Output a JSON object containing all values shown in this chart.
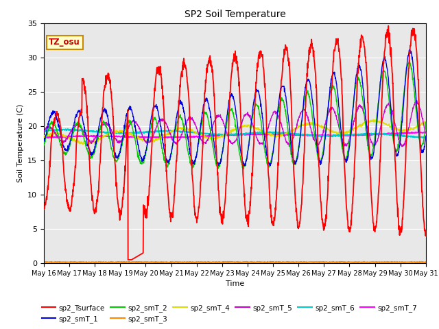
{
  "title": "SP2 Soil Temperature",
  "ylabel": "Soil Temperature (C)",
  "xlabel": "Time",
  "ylim": [
    0,
    35
  ],
  "annotation": "TZ_osu",
  "annotation_color": "#cc0000",
  "annotation_bg": "#ffffcc",
  "annotation_border": "#cc8800",
  "plot_bg": "#e8e8e8",
  "fig_bg": "#ffffff",
  "series_colors": {
    "sp2_Tsurface": "#ff0000",
    "sp2_smT_1": "#0000dd",
    "sp2_smT_2": "#00cc00",
    "sp2_smT_3": "#ff8800",
    "sp2_smT_4": "#dddd00",
    "sp2_smT_5": "#cc00cc",
    "sp2_smT_6": "#00cccc",
    "sp2_smT_7": "#ff00ff"
  },
  "tick_labels": [
    "May 16",
    "May 17",
    "May 18",
    "May 19",
    "May 20",
    "May 21",
    "May 22",
    "May 23",
    "May 24",
    "May 25",
    "May 26",
    "May 27",
    "May 28",
    "May 29",
    "May 30",
    "May 31"
  ],
  "yticks": [
    0,
    5,
    10,
    15,
    20,
    25,
    30,
    35
  ],
  "n_points": 1440
}
